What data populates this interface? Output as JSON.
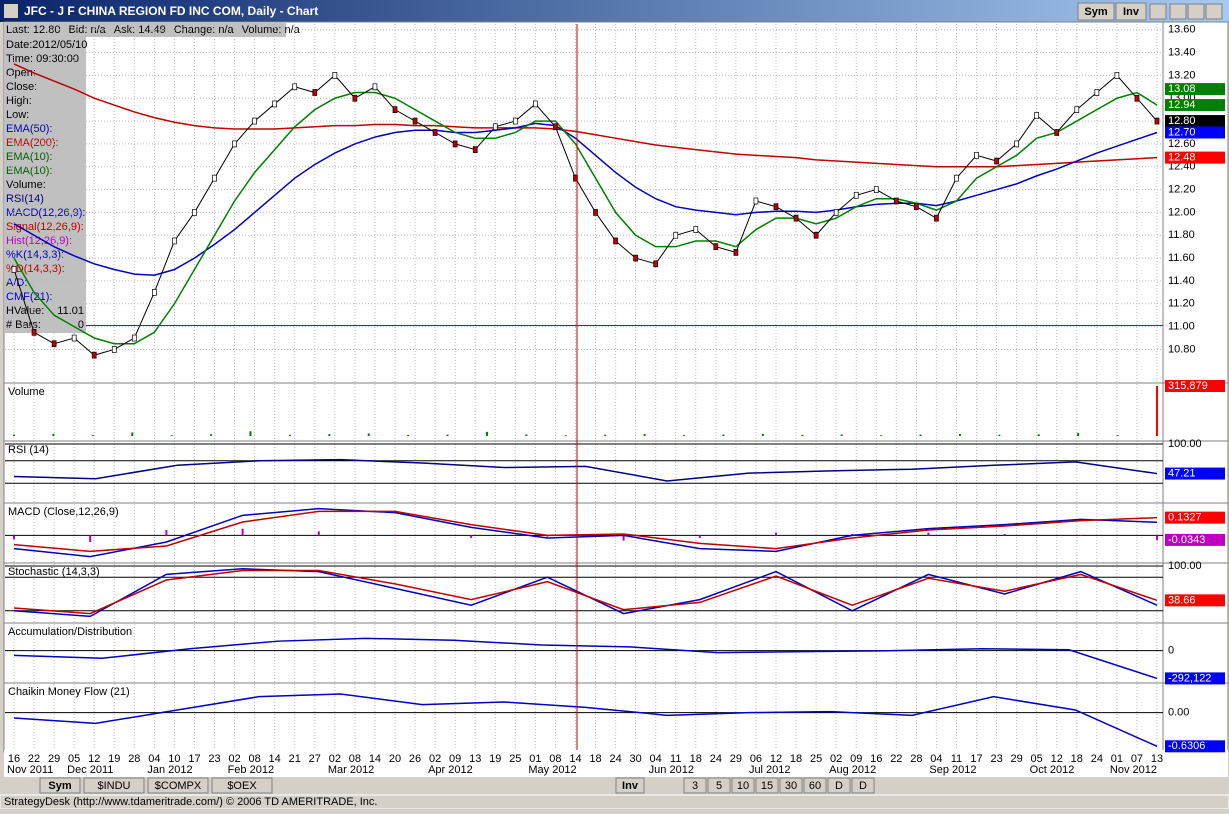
{
  "window": {
    "title": "JFC - J F CHINA REGION FD INC COM, Daily - Chart",
    "buttons": [
      "Sym",
      "Inv"
    ]
  },
  "info_bar": [
    "Last: 12.80",
    "Bid: n/a",
    "Ask: 14.49",
    "Change: n/a",
    "Volume: n/a"
  ],
  "legend": [
    {
      "label": "Date:2012/05/10",
      "color": "#000000"
    },
    {
      "label": "Time:    09:30:00",
      "color": "#000000"
    },
    {
      "label": "Open:",
      "color": "#000000"
    },
    {
      "label": "Close:",
      "color": "#000000"
    },
    {
      "label": "High:",
      "color": "#000000"
    },
    {
      "label": "Low:",
      "color": "#000000"
    },
    {
      "label": "EMA(50):",
      "color": "#0000c0"
    },
    {
      "label": "EMA(200):",
      "color": "#c00000"
    },
    {
      "label": "EMA(10):",
      "color": "#006000"
    },
    {
      "label": "EMA(10):",
      "color": "#006000"
    },
    {
      "label": "Volume:",
      "color": "#000000"
    },
    {
      "label": "RSI(14)",
      "color": "#000080"
    },
    {
      "label": "MACD(12,26,9):",
      "color": "#0000c0"
    },
    {
      "label": "Signal(12,26,9):",
      "color": "#c00000"
    },
    {
      "label": "Hist(12,26,9):",
      "color": "#c000c0"
    },
    {
      "label": "%K(14,3,3):",
      "color": "#0000c0"
    },
    {
      "label": "%D(14,3,3):",
      "color": "#c00000"
    },
    {
      "label": "A/D:",
      "color": "#0000c0"
    },
    {
      "label": "CMF(21):",
      "color": "#0000c0"
    }
  ],
  "hvalue": {
    "label": "HValue:",
    "value": 11.01
  },
  "bars": {
    "label": "# Bars:",
    "value": 0
  },
  "chart_data": [
    {
      "type": "line",
      "ylim": [
        10.55,
        13.65
      ],
      "yticks": [
        {
          "value": 13.6,
          "label": "13.60"
        },
        {
          "value": 13.4,
          "label": "13.40"
        },
        {
          "value": 13.2,
          "label": "13.20"
        },
        {
          "value": 13.0,
          "label": "13.00"
        },
        {
          "value": 12.8,
          "label": "12.80"
        },
        {
          "value": 12.6,
          "label": "12.60"
        },
        {
          "value": 12.4,
          "label": "12.40"
        },
        {
          "value": 12.2,
          "label": "12.20"
        },
        {
          "value": 12.0,
          "label": "12.00"
        },
        {
          "value": 11.8,
          "label": "11.80"
        },
        {
          "value": 11.6,
          "label": "11.60"
        },
        {
          "value": 11.4,
          "label": "11.40"
        },
        {
          "value": 11.2,
          "label": "11.20"
        },
        {
          "value": 11.0,
          "label": "11.00"
        },
        {
          "value": 10.8,
          "label": "10.80"
        }
      ],
      "grid": true,
      "series": [
        {
          "color": "#c00000",
          "values": [
            13.3,
            13.22,
            13.15,
            13.08,
            13.0,
            12.94,
            12.88,
            12.83,
            12.79,
            12.76,
            12.74,
            12.73,
            12.73,
            12.73,
            12.74,
            12.75,
            12.76,
            12.76,
            12.77,
            12.77,
            12.76,
            12.76,
            12.75,
            12.74,
            12.74,
            12.74,
            12.74,
            12.73,
            12.71,
            12.68,
            12.65,
            12.62,
            12.59,
            12.57,
            12.55,
            12.53,
            12.51,
            12.5,
            12.49,
            12.48,
            12.46,
            12.45,
            12.44,
            12.43,
            12.42,
            12.41,
            12.4,
            12.4,
            12.4,
            12.4,
            12.41,
            12.42,
            12.43,
            12.44,
            12.45,
            12.46,
            12.47,
            12.48
          ]
        },
        {
          "color": "#0000c0",
          "values": [
            11.9,
            11.8,
            11.7,
            11.62,
            11.55,
            11.5,
            11.46,
            11.45,
            11.5,
            11.6,
            11.72,
            11.85,
            12.0,
            12.15,
            12.3,
            12.42,
            12.52,
            12.6,
            12.66,
            12.7,
            12.72,
            12.72,
            12.7,
            12.7,
            12.72,
            12.74,
            12.78,
            12.76,
            12.65,
            12.5,
            12.35,
            12.22,
            12.12,
            12.05,
            12.02,
            12.0,
            11.98,
            12.0,
            12.01,
            12.01,
            12.0,
            12.02,
            12.05,
            12.07,
            12.08,
            12.08,
            12.06,
            12.1,
            12.15,
            12.2,
            12.25,
            12.32,
            12.38,
            12.45,
            12.52,
            12.58,
            12.64,
            12.7
          ]
        },
        {
          "color": "#008000",
          "values": [
            11.6,
            11.3,
            11.1,
            11.0,
            10.9,
            10.85,
            10.85,
            10.95,
            11.2,
            11.5,
            11.8,
            12.1,
            12.35,
            12.55,
            12.75,
            12.9,
            13.0,
            13.05,
            13.05,
            13.0,
            12.9,
            12.8,
            12.7,
            12.65,
            12.65,
            12.7,
            12.8,
            12.8,
            12.6,
            12.3,
            12.0,
            11.8,
            11.7,
            11.7,
            11.75,
            11.75,
            11.7,
            11.85,
            11.95,
            11.95,
            11.9,
            11.95,
            12.05,
            12.12,
            12.12,
            12.08,
            12.02,
            12.1,
            12.3,
            12.4,
            12.5,
            12.65,
            12.7,
            12.8,
            12.9,
            13.0,
            13.05,
            12.94
          ]
        },
        {
          "color": "#000000",
          "marker": true,
          "values": [
            11.5,
            10.95,
            10.85,
            10.9,
            10.75,
            10.8,
            10.9,
            11.3,
            11.75,
            12.0,
            12.3,
            12.6,
            12.8,
            12.95,
            13.1,
            13.05,
            13.2,
            13.0,
            13.1,
            12.9,
            12.8,
            12.7,
            12.6,
            12.55,
            12.75,
            12.8,
            12.95,
            12.75,
            12.3,
            12.0,
            11.75,
            11.6,
            11.55,
            11.8,
            11.85,
            11.7,
            11.65,
            12.1,
            12.05,
            11.95,
            11.8,
            12.0,
            12.15,
            12.2,
            12.1,
            12.05,
            11.95,
            12.3,
            12.5,
            12.45,
            12.6,
            12.85,
            12.7,
            12.9,
            13.05,
            13.2,
            13.0,
            12.8
          ]
        }
      ],
      "last_labels": [
        {
          "value": 13.08,
          "label": "13.08",
          "color": "#008000"
        },
        {
          "value": 12.94,
          "label": "12.94",
          "color": "#008000"
        },
        {
          "value": 12.8,
          "label": "12.80",
          "color": "#000000"
        },
        {
          "value": 12.7,
          "label": "12.70",
          "color": "#0000ff"
        },
        {
          "value": 12.48,
          "label": "12.48",
          "color": "#ff0000"
        }
      ]
    },
    {
      "type": "bar",
      "title": "Volume",
      "ylim": [
        0,
        315879
      ],
      "series": [
        {
          "color": "#008000",
          "values": [
            9000,
            14000,
            6000,
            22000,
            5000,
            11000,
            30000,
            8000,
            12000,
            16000,
            7000,
            9000,
            26000,
            10000,
            5000,
            8000,
            12000,
            6000,
            9000,
            14000,
            7000,
            10000,
            5000,
            9000,
            13000,
            8000,
            11000,
            20000,
            6000,
            null
          ]
        },
        {
          "color": "#ff0000",
          "values": [
            null,
            null,
            null,
            null,
            null,
            null,
            null,
            null,
            null,
            null,
            null,
            null,
            null,
            null,
            null,
            null,
            null,
            null,
            null,
            null,
            null,
            null,
            null,
            null,
            null,
            null,
            null,
            null,
            null,
            315879
          ]
        }
      ],
      "last_labels": [
        {
          "value": 315879,
          "label": "315,879",
          "color": "#ff0000"
        }
      ]
    },
    {
      "type": "line",
      "title": "RSI (14)",
      "ylim": [
        0,
        100
      ],
      "yticks": [
        {
          "value": 100,
          "label": "100.00"
        }
      ],
      "levels": [
        70,
        30
      ],
      "series": [
        {
          "color": "#000080",
          "values": [
            42,
            38,
            62,
            70,
            72,
            66,
            58,
            60,
            34,
            48,
            52,
            55,
            62,
            68,
            47.21
          ]
        }
      ],
      "last_labels": [
        {
          "value": 47.21,
          "label": "47.21",
          "color": "#0000ff"
        }
      ]
    },
    {
      "type": "line",
      "title": "MACD (Close,12,26,9)",
      "ylim": [
        -0.2,
        0.22
      ],
      "levels": [
        0
      ],
      "series": [
        {
          "type": "bar",
          "color": "#c000c0",
          "values": [
            -0.03,
            -0.05,
            0.04,
            0.05,
            0.03,
            0.0,
            -0.02,
            -0.01,
            -0.04,
            -0.02,
            0.02,
            0.01,
            0.02,
            0.01,
            0.0,
            -0.0343
          ]
        },
        {
          "color": "#0000c0",
          "values": [
            -0.1,
            -0.16,
            -0.05,
            0.15,
            0.2,
            0.17,
            0.06,
            -0.02,
            0.0,
            -0.1,
            -0.12,
            0.0,
            0.05,
            0.08,
            0.12,
            0.098
          ]
        },
        {
          "color": "#c00000",
          "values": [
            -0.07,
            -0.12,
            -0.08,
            0.1,
            0.18,
            0.18,
            0.08,
            0.0,
            0.01,
            -0.06,
            -0.1,
            -0.02,
            0.04,
            0.07,
            0.11,
            0.1327
          ]
        }
      ],
      "last_labels": [
        {
          "value": 0.1327,
          "label": "0.1327",
          "color": "#ff0000"
        },
        {
          "value": -0.0343,
          "label": "-0.0343",
          "color": "#c000c0"
        }
      ]
    },
    {
      "type": "line",
      "title": "Stochastic (14,3,3)",
      "ylim": [
        0,
        100
      ],
      "yticks": [
        {
          "value": 100,
          "label": "100.00"
        }
      ],
      "levels": [
        80,
        20
      ],
      "series": [
        {
          "color": "#0000c0",
          "values": [
            20,
            10,
            85,
            95,
            90,
            60,
            30,
            80,
            15,
            40,
            90,
            20,
            85,
            50,
            90,
            30
          ]
        },
        {
          "color": "#c00000",
          "values": [
            25,
            15,
            75,
            92,
            92,
            68,
            40,
            72,
            22,
            35,
            82,
            30,
            78,
            55,
            85,
            38.66
          ]
        }
      ],
      "last_labels": [
        {
          "value": 38.66,
          "label": "38.66",
          "color": "#ff0000"
        }
      ]
    },
    {
      "type": "line",
      "title": "Accumulation/Distribution",
      "ylim": [
        -330000,
        260000
      ],
      "yticks": [
        0
      ],
      "series": [
        {
          "color": "#0000c0",
          "values": [
            -50000,
            -80000,
            20000,
            100000,
            130000,
            110000,
            60000,
            40000,
            -20000,
            -10000,
            0,
            20000,
            10000,
            -292122
          ]
        }
      ],
      "last_labels": [
        {
          "value": -292122,
          "label": "-292,122",
          "color": "#0000ff"
        }
      ]
    },
    {
      "type": "line",
      "title": "Chaikin Money Flow (21)",
      "ylim": [
        -0.7,
        0.5
      ],
      "yticks": [
        {
          "value": 0,
          "label": "0.00"
        }
      ],
      "series": [
        {
          "color": "#0000c0",
          "values": [
            -0.1,
            -0.2,
            0.05,
            0.3,
            0.35,
            0.15,
            0.2,
            0.1,
            -0.05,
            0.0,
            0.02,
            -0.05,
            0.3,
            0.05,
            -0.6306
          ]
        }
      ],
      "last_labels": [
        {
          "value": -0.6306,
          "label": "-0.6306",
          "color": "#0000ff"
        }
      ]
    }
  ],
  "date_axis": {
    "days": [
      "16",
      "22",
      "29",
      "05",
      "12",
      "19",
      "28",
      "04",
      "10",
      "17",
      "23",
      "02",
      "08",
      "14",
      "21",
      "27",
      "02",
      "08",
      "14",
      "20",
      "26",
      "02",
      "09",
      "13",
      "19",
      "25",
      "01",
      "08",
      "14",
      "18",
      "24",
      "30",
      "04",
      "11",
      "18",
      "24",
      "29",
      "06",
      "12",
      "18",
      "25",
      "02",
      "09",
      "16",
      "22",
      "28",
      "04",
      "11",
      "17",
      "23",
      "29",
      "05",
      "12",
      "18",
      "24",
      "01",
      "07",
      "13"
    ],
    "months": [
      "Nov 2011",
      "Dec 2011",
      "Jan 2012",
      "Feb 2012",
      "Mar 2012",
      "Apr 2012",
      "May 2012",
      "Jun 2012",
      "Jul 2012",
      "Aug 2012",
      "Sep 2012",
      "Oct 2012",
      "Nov 2012"
    ]
  },
  "tabs": {
    "left": [
      "Sym",
      "$INDU",
      "$COMPX",
      "$OEX"
    ],
    "right": [
      "Inv",
      "3",
      "5",
      "10",
      "15",
      "30",
      "60",
      "D",
      "D"
    ]
  },
  "status": "StrategyDesk (http://www.tdameritrade.com/) © 2006 TD AMERITRADE, Inc."
}
